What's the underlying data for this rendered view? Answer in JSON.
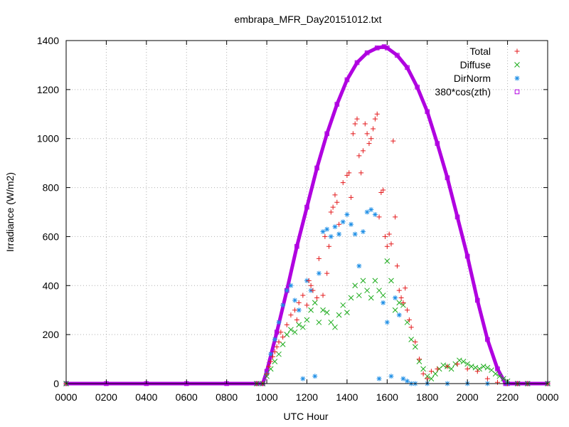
{
  "chart_data": {
    "type": "scatter",
    "title": "embrapa_MFR_Day20151012.txt",
    "xlabel": "UTC Hour",
    "ylabel": "Irradiance (W/m2)",
    "xlim": [
      0,
      24
    ],
    "ylim": [
      0,
      1400
    ],
    "xticks": [
      0,
      2,
      4,
      6,
      8,
      10,
      12,
      14,
      16,
      18,
      20,
      22,
      24
    ],
    "xtick_labels": [
      "0000",
      "0200",
      "0400",
      "0600",
      "0800",
      "1000",
      "1200",
      "1400",
      "1600",
      "1800",
      "2000",
      "2200",
      "0000"
    ],
    "yticks": [
      0,
      200,
      400,
      600,
      800,
      1000,
      1200,
      1400
    ],
    "ytick_labels": [
      "0",
      "200",
      "400",
      "600",
      "800",
      "1000",
      "1200",
      "1400"
    ],
    "grid": true,
    "legend_position": "top-right",
    "series": [
      {
        "name": "Total",
        "marker": "plus",
        "color": "#e41a1c",
        "x": [
          0,
          9.5,
          9.8,
          10.0,
          10.1,
          10.2,
          10.3,
          10.4,
          10.5,
          10.6,
          10.7,
          10.8,
          11.0,
          11.2,
          11.4,
          11.5,
          11.6,
          11.8,
          12.0,
          12.1,
          12.2,
          12.3,
          12.5,
          12.6,
          12.8,
          12.9,
          13.0,
          13.1,
          13.2,
          13.3,
          13.4,
          13.5,
          13.6,
          13.8,
          14.0,
          14.1,
          14.2,
          14.3,
          14.4,
          14.5,
          14.6,
          14.7,
          14.8,
          14.9,
          15.0,
          15.1,
          15.2,
          15.3,
          15.4,
          15.5,
          15.6,
          15.7,
          15.8,
          15.9,
          16.0,
          16.1,
          16.2,
          16.3,
          16.4,
          16.5,
          16.6,
          16.7,
          16.8,
          16.9,
          17.0,
          17.1,
          17.2,
          17.4,
          17.6,
          17.8,
          18.0,
          18.2,
          18.5,
          19.0,
          19.5,
          20.0,
          20.5,
          21.0,
          21.5,
          22.0,
          22.5,
          23.0,
          24.0
        ],
        "y": [
          0,
          0,
          0,
          40,
          70,
          90,
          110,
          130,
          150,
          170,
          210,
          190,
          240,
          280,
          300,
          260,
          330,
          360,
          320,
          420,
          400,
          380,
          350,
          510,
          360,
          600,
          450,
          560,
          700,
          720,
          770,
          740,
          650,
          820,
          850,
          860,
          760,
          1020,
          1060,
          1080,
          930,
          860,
          950,
          1060,
          1020,
          980,
          1000,
          1040,
          1080,
          1100,
          680,
          780,
          790,
          600,
          560,
          610,
          570,
          990,
          680,
          480,
          380,
          350,
          330,
          390,
          300,
          260,
          230,
          170,
          100,
          40,
          20,
          50,
          60,
          70,
          80,
          60,
          50,
          20,
          5,
          0,
          0,
          0,
          0
        ]
      },
      {
        "name": "Diffuse",
        "marker": "cross",
        "color": "#1aab1a",
        "x": [
          0,
          9.5,
          9.8,
          10.0,
          10.2,
          10.4,
          10.6,
          10.8,
          11.0,
          11.2,
          11.4,
          11.6,
          11.8,
          12.0,
          12.2,
          12.4,
          12.6,
          12.8,
          13.0,
          13.2,
          13.4,
          13.6,
          13.8,
          14.0,
          14.2,
          14.4,
          14.6,
          14.8,
          15.0,
          15.2,
          15.4,
          15.6,
          15.8,
          16.0,
          16.2,
          16.4,
          16.6,
          16.8,
          17.0,
          17.2,
          17.4,
          17.6,
          17.8,
          18.0,
          18.2,
          18.4,
          18.6,
          18.8,
          19.0,
          19.2,
          19.4,
          19.6,
          19.8,
          20.0,
          20.2,
          20.4,
          20.6,
          20.8,
          21.0,
          21.2,
          21.4,
          21.6,
          21.8,
          22.0,
          22.5,
          23.0,
          24.0
        ],
        "y": [
          0,
          0,
          0,
          30,
          60,
          90,
          120,
          160,
          200,
          220,
          210,
          240,
          230,
          260,
          300,
          330,
          250,
          300,
          290,
          250,
          230,
          280,
          320,
          290,
          350,
          400,
          360,
          420,
          380,
          350,
          420,
          380,
          360,
          500,
          420,
          300,
          330,
          320,
          250,
          180,
          150,
          90,
          60,
          30,
          20,
          40,
          60,
          75,
          70,
          60,
          80,
          95,
          90,
          80,
          70,
          65,
          60,
          70,
          65,
          55,
          40,
          30,
          20,
          10,
          0,
          0,
          0
        ]
      },
      {
        "name": "DirNorm",
        "marker": "star",
        "color": "#1f8fe6",
        "x": [
          0,
          9.5,
          10.0,
          10.2,
          10.4,
          10.6,
          10.8,
          11.0,
          11.2,
          11.4,
          11.6,
          11.8,
          12.0,
          12.2,
          12.4,
          12.6,
          12.8,
          13.0,
          13.2,
          13.4,
          13.6,
          13.8,
          14.0,
          14.2,
          14.4,
          14.6,
          14.8,
          15.0,
          15.2,
          15.4,
          15.6,
          15.8,
          16.0,
          16.2,
          16.4,
          16.6,
          16.8,
          17.0,
          17.2,
          17.4,
          18.0,
          19.0,
          20.0,
          21.0,
          22.0,
          23.0,
          24.0
        ],
        "y": [
          0,
          0,
          40,
          120,
          180,
          250,
          320,
          380,
          400,
          340,
          300,
          20,
          420,
          380,
          30,
          450,
          620,
          630,
          600,
          640,
          610,
          660,
          690,
          650,
          610,
          480,
          620,
          700,
          710,
          690,
          20,
          330,
          250,
          30,
          350,
          280,
          20,
          10,
          0,
          0,
          0,
          0,
          0,
          0,
          0,
          0,
          0
        ]
      },
      {
        "name": "380*cos(zth)",
        "marker": "square",
        "color": "#b000e0",
        "x": [
          0,
          2,
          4,
          6,
          8,
          9.5,
          9.8,
          10.0,
          10.5,
          11.0,
          11.5,
          12.0,
          12.5,
          13.0,
          13.5,
          14.0,
          14.5,
          15.0,
          15.5,
          15.85,
          16.0,
          16.5,
          17.0,
          17.5,
          18.0,
          18.5,
          19.0,
          19.5,
          20.0,
          20.5,
          21.0,
          21.5,
          21.9,
          22.0,
          22.5,
          23.0,
          24.0
        ],
        "y": [
          0,
          0,
          0,
          0,
          0,
          0,
          0,
          50,
          210,
          380,
          560,
          720,
          880,
          1020,
          1140,
          1240,
          1310,
          1350,
          1370,
          1375,
          1370,
          1340,
          1290,
          1210,
          1110,
          980,
          840,
          680,
          520,
          340,
          180,
          60,
          0,
          0,
          0,
          0,
          0
        ]
      }
    ]
  }
}
